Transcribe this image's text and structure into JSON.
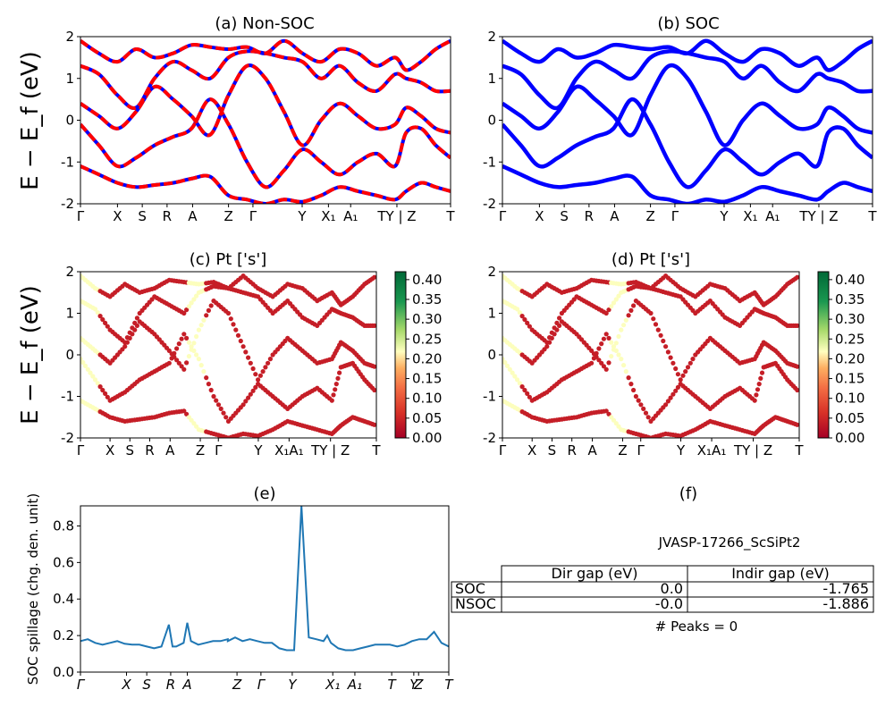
{
  "axis_labels": {
    "energy_ylabel": "E − E_f (eV)",
    "spill_ylabel": "SOC spillage (chg. den. unit)"
  },
  "colorbar_ticks": [
    "0.00",
    "0.05",
    "0.10",
    "0.15",
    "0.20",
    "0.25",
    "0.30",
    "0.35",
    "0.40"
  ],
  "colors": {
    "band_soc": "#0000ff",
    "nonsoc_up": "#0000ff",
    "nonsoc_dn": "#ff0000",
    "spillage": "#1f77b4",
    "cmap": "RdYlGn"
  },
  "chart_data": [
    {
      "panel": "a",
      "type": "line",
      "title": "(a) Non-SOC",
      "ylim": [
        -2,
        2
      ],
      "yticks": [
        -2,
        -1,
        0,
        1,
        2
      ],
      "kpath_labels": [
        "Γ",
        "X",
        "S",
        "R",
        "A",
        "Z",
        "Γ",
        "Y",
        "X₁",
        "A₁",
        "TY | Z",
        "T"
      ],
      "series": [
        {
          "x": [
            0,
            0.05,
            0.1,
            0.15,
            0.2,
            0.25,
            0.3,
            0.35,
            0.4,
            0.45,
            0.5,
            0.55,
            0.6,
            0.65,
            0.7,
            0.75,
            0.8,
            0.85,
            0.88,
            0.92,
            0.96,
            1.0
          ],
          "y": [
            -1.1,
            -1.3,
            -1.5,
            -1.6,
            -1.55,
            -1.5,
            -1.4,
            -1.35,
            -1.8,
            -1.9,
            -2.0,
            -1.9,
            -1.95,
            -1.8,
            -1.6,
            -1.7,
            -1.8,
            -1.9,
            -1.7,
            -1.5,
            -1.6,
            -1.7
          ]
        },
        {
          "x": [
            0,
            0.05,
            0.1,
            0.15,
            0.2,
            0.25,
            0.3,
            0.35,
            0.4,
            0.45,
            0.5,
            0.55,
            0.6,
            0.65,
            0.7,
            0.75,
            0.8,
            0.85,
            0.88,
            0.92,
            0.96,
            1.0
          ],
          "y": [
            -0.1,
            -0.6,
            -1.1,
            -0.9,
            -0.6,
            -0.4,
            -0.2,
            0.5,
            -0.1,
            -1.0,
            -1.6,
            -1.2,
            -0.7,
            -1.0,
            -1.3,
            -1.0,
            -0.8,
            -1.1,
            -0.3,
            -0.2,
            -0.6,
            -0.9
          ]
        },
        {
          "x": [
            0,
            0.05,
            0.1,
            0.15,
            0.2,
            0.25,
            0.3,
            0.35,
            0.4,
            0.45,
            0.5,
            0.55,
            0.6,
            0.65,
            0.7,
            0.75,
            0.8,
            0.85,
            0.88,
            0.92,
            0.96,
            1.0
          ],
          "y": [
            0.4,
            0.1,
            -0.2,
            0.2,
            0.8,
            0.5,
            0.1,
            -0.35,
            0.6,
            1.3,
            1.0,
            0.2,
            -0.6,
            0.0,
            0.4,
            0.1,
            -0.2,
            -0.1,
            0.3,
            0.1,
            -0.2,
            -0.3
          ]
        },
        {
          "x": [
            0,
            0.05,
            0.1,
            0.15,
            0.2,
            0.25,
            0.3,
            0.35,
            0.4,
            0.45,
            0.5,
            0.55,
            0.6,
            0.65,
            0.7,
            0.75,
            0.8,
            0.85,
            0.88,
            0.92,
            0.96,
            1.0
          ],
          "y": [
            1.3,
            1.1,
            0.6,
            0.3,
            1.0,
            1.4,
            1.2,
            1.0,
            1.5,
            1.65,
            1.6,
            1.5,
            1.4,
            1.0,
            1.3,
            0.9,
            0.7,
            1.1,
            1.0,
            0.9,
            0.7,
            0.7
          ]
        },
        {
          "x": [
            0,
            0.05,
            0.1,
            0.15,
            0.2,
            0.25,
            0.3,
            0.35,
            0.4,
            0.45,
            0.5,
            0.55,
            0.6,
            0.65,
            0.7,
            0.75,
            0.8,
            0.85,
            0.88,
            0.92,
            0.96,
            1.0
          ],
          "y": [
            1.9,
            1.6,
            1.4,
            1.7,
            1.5,
            1.6,
            1.8,
            1.75,
            1.7,
            1.75,
            1.6,
            1.9,
            1.6,
            1.4,
            1.7,
            1.6,
            1.3,
            1.5,
            1.2,
            1.4,
            1.7,
            1.9
          ]
        }
      ]
    },
    {
      "panel": "b",
      "type": "line",
      "title": "(b) SOC",
      "ylim": [
        -2,
        2
      ],
      "yticks": [
        -2,
        -1,
        0,
        1,
        2
      ],
      "kpath_labels": [
        "Γ",
        "X",
        "S",
        "R",
        "A",
        "Z",
        "Γ",
        "Y",
        "X₁",
        "A₁",
        "TY | Z",
        "T"
      ],
      "series": [
        {
          "x": [
            0,
            0.05,
            0.1,
            0.15,
            0.2,
            0.25,
            0.3,
            0.35,
            0.4,
            0.45,
            0.5,
            0.55,
            0.6,
            0.65,
            0.7,
            0.75,
            0.8,
            0.85,
            0.88,
            0.92,
            0.96,
            1.0
          ],
          "y": [
            -1.1,
            -1.3,
            -1.5,
            -1.6,
            -1.55,
            -1.5,
            -1.4,
            -1.35,
            -1.8,
            -1.9,
            -2.0,
            -1.9,
            -1.95,
            -1.8,
            -1.6,
            -1.7,
            -1.8,
            -1.9,
            -1.7,
            -1.5,
            -1.6,
            -1.7
          ]
        },
        {
          "x": [
            0,
            0.05,
            0.1,
            0.15,
            0.2,
            0.25,
            0.3,
            0.35,
            0.4,
            0.45,
            0.5,
            0.55,
            0.6,
            0.65,
            0.7,
            0.75,
            0.8,
            0.85,
            0.88,
            0.92,
            0.96,
            1.0
          ],
          "y": [
            -0.1,
            -0.6,
            -1.1,
            -0.9,
            -0.6,
            -0.4,
            -0.2,
            0.5,
            -0.1,
            -1.0,
            -1.6,
            -1.2,
            -0.7,
            -1.0,
            -1.3,
            -1.0,
            -0.8,
            -1.1,
            -0.3,
            -0.2,
            -0.6,
            -0.9
          ]
        },
        {
          "x": [
            0,
            0.05,
            0.1,
            0.15,
            0.2,
            0.25,
            0.3,
            0.35,
            0.4,
            0.45,
            0.5,
            0.55,
            0.6,
            0.65,
            0.7,
            0.75,
            0.8,
            0.85,
            0.88,
            0.92,
            0.96,
            1.0
          ],
          "y": [
            0.4,
            0.1,
            -0.2,
            0.2,
            0.8,
            0.5,
            0.1,
            -0.35,
            0.6,
            1.3,
            1.0,
            0.2,
            -0.6,
            0.0,
            0.4,
            0.1,
            -0.2,
            -0.1,
            0.3,
            0.1,
            -0.2,
            -0.3
          ]
        },
        {
          "x": [
            0,
            0.05,
            0.1,
            0.15,
            0.2,
            0.25,
            0.3,
            0.35,
            0.4,
            0.45,
            0.5,
            0.55,
            0.6,
            0.65,
            0.7,
            0.75,
            0.8,
            0.85,
            0.88,
            0.92,
            0.96,
            1.0
          ],
          "y": [
            1.3,
            1.1,
            0.6,
            0.3,
            1.0,
            1.4,
            1.2,
            1.0,
            1.5,
            1.65,
            1.6,
            1.5,
            1.4,
            1.0,
            1.3,
            0.9,
            0.7,
            1.1,
            1.0,
            0.9,
            0.7,
            0.7
          ]
        },
        {
          "x": [
            0,
            0.05,
            0.1,
            0.15,
            0.2,
            0.25,
            0.3,
            0.35,
            0.4,
            0.45,
            0.5,
            0.55,
            0.6,
            0.65,
            0.7,
            0.75,
            0.8,
            0.85,
            0.88,
            0.92,
            0.96,
            1.0
          ],
          "y": [
            1.9,
            1.6,
            1.4,
            1.7,
            1.5,
            1.6,
            1.8,
            1.75,
            1.7,
            1.75,
            1.6,
            1.9,
            1.6,
            1.4,
            1.7,
            1.6,
            1.3,
            1.5,
            1.2,
            1.4,
            1.7,
            1.9
          ]
        }
      ]
    },
    {
      "panel": "c",
      "type": "scatter",
      "title": "(c)  Pt ['s']",
      "ylim": [
        -2,
        2
      ],
      "yticks": [
        -2,
        -1,
        0,
        1,
        2
      ],
      "kpath_labels": [
        "Γ",
        "X",
        "S",
        "R",
        "A",
        "Z",
        "Γ",
        "Y",
        "X₁A₁",
        "TY | Z",
        "T"
      ],
      "colorbar": {
        "range": [
          0,
          0.42
        ]
      }
    },
    {
      "panel": "d",
      "type": "scatter",
      "title": "(d) Pt ['s']",
      "ylim": [
        -2,
        2
      ],
      "yticks": [
        -2,
        -1,
        0,
        1,
        2
      ],
      "kpath_labels": [
        "Γ",
        "X",
        "S",
        "R",
        "A",
        "Z",
        "Γ",
        "Y",
        "X₁A₁",
        "TY | Z",
        "T"
      ],
      "colorbar": {
        "range": [
          0,
          0.42
        ]
      }
    },
    {
      "panel": "e",
      "type": "line",
      "title": "(e)",
      "ylabel": "SOC spillage (chg. den. unit)",
      "ylim": [
        0,
        0.91
      ],
      "yticks": [
        0.0,
        0.2,
        0.4,
        0.6,
        0.8
      ],
      "kpath_labels": [
        "Γ",
        "X",
        "S",
        "R",
        "A",
        "Z",
        "Γ",
        "Y",
        "X₁",
        "A₁",
        "T",
        "Y",
        "Z",
        "T"
      ],
      "x": [
        0,
        0.02,
        0.04,
        0.06,
        0.08,
        0.1,
        0.12,
        0.14,
        0.16,
        0.18,
        0.2,
        0.22,
        0.24,
        0.25,
        0.26,
        0.28,
        0.29,
        0.3,
        0.32,
        0.34,
        0.36,
        0.38,
        0.4,
        0.4,
        0.42,
        0.44,
        0.46,
        0.48,
        0.5,
        0.52,
        0.54,
        0.56,
        0.58,
        0.6,
        0.62,
        0.64,
        0.66,
        0.67,
        0.68,
        0.7,
        0.72,
        0.74,
        0.76,
        0.78,
        0.8,
        0.82,
        0.84,
        0.86,
        0.88,
        0.9,
        0.92,
        0.94,
        0.96,
        0.98,
        1.0
      ],
      "y": [
        0.17,
        0.18,
        0.16,
        0.15,
        0.16,
        0.17,
        0.155,
        0.15,
        0.15,
        0.14,
        0.13,
        0.14,
        0.26,
        0.14,
        0.14,
        0.16,
        0.27,
        0.17,
        0.15,
        0.16,
        0.17,
        0.17,
        0.18,
        0.17,
        0.19,
        0.17,
        0.18,
        0.17,
        0.16,
        0.16,
        0.13,
        0.12,
        0.12,
        0.91,
        0.19,
        0.18,
        0.17,
        0.2,
        0.16,
        0.13,
        0.12,
        0.12,
        0.13,
        0.14,
        0.15,
        0.15,
        0.15,
        0.14,
        0.15,
        0.17,
        0.18,
        0.18,
        0.22,
        0.16,
        0.14
      ]
    }
  ],
  "table": {
    "title": "JVASP-17266_ScSiPt2",
    "panel_title": "(f)",
    "headers": [
      "Dir gap (eV)",
      "Indir gap (eV)"
    ],
    "rows": [
      {
        "label": "SOC",
        "dir": "0.0",
        "indir": "-1.765"
      },
      {
        "label": "NSOC",
        "dir": "-0.0",
        "indir": "-1.886"
      }
    ],
    "peaks": "# Peaks = 0"
  }
}
